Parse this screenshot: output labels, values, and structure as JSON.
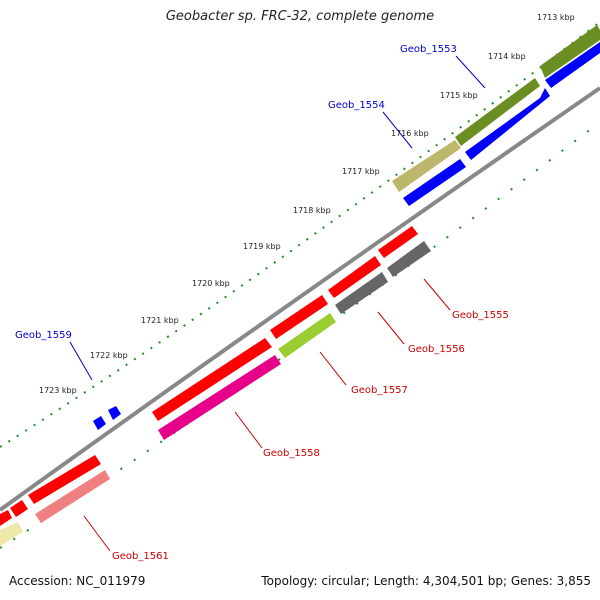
{
  "title": "Geobacter sp. FRC-32, complete genome",
  "footer": {
    "accession": "Accession: NC_011979",
    "stats": "Topology: circular; Length: 4,304,501 bp; Genes: 3,855"
  },
  "tick_labels": [
    "1713 kbp",
    "1714 kbp",
    "1715 kbp",
    "1716 kbp",
    "1717 kbp",
    "1718 kbp",
    "1719 kbp",
    "1720 kbp",
    "1721 kbp",
    "1722 kbp",
    "1723 kbp"
  ],
  "gene_labels": {
    "geob_1553": "Geob_1553",
    "geob_1554": "Geob_1554",
    "geob_1555": "Geob_1555",
    "geob_1556": "Geob_1556",
    "geob_1557": "Geob_1557",
    "geob_1558": "Geob_1558",
    "geob_1559": "Geob_1559",
    "geob_1561": "Geob_1561"
  },
  "colors": {
    "olive": "#6b8e23",
    "khaki": "#bdb76b",
    "blue": "#0000ff",
    "red": "#ff0000",
    "gray": "#666666",
    "yellowgreen": "#9acd32",
    "magenta": "#e6008a",
    "salmon": "#f08080",
    "paleyellow": "#eee8aa",
    "tick_green": "#228b22",
    "backbone": "#888888",
    "label_blue": "#0000cc",
    "label_red": "#cc0000"
  }
}
